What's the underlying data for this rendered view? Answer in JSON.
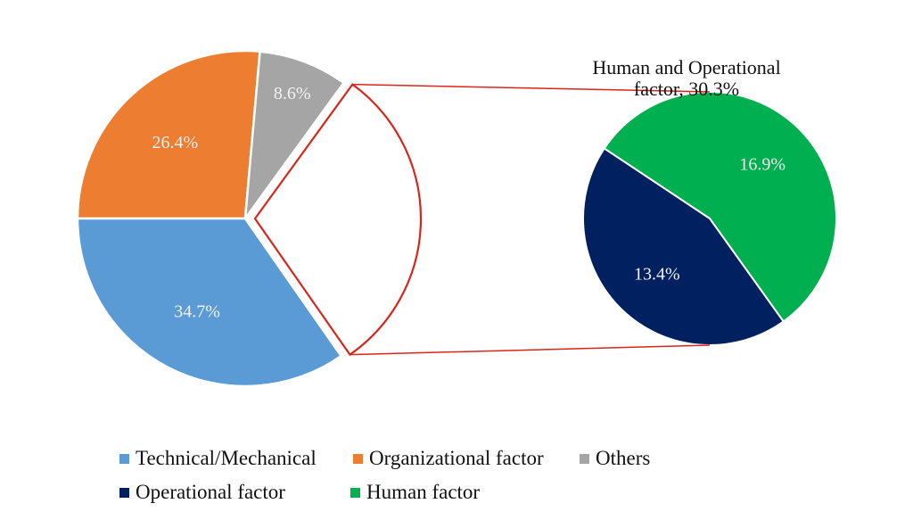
{
  "chart_data": {
    "type": "pie",
    "title": "",
    "main_pie": {
      "slices": [
        {
          "name": "Technical/Mechanical",
          "value": 34.7,
          "label": "34.7%",
          "color": "#5B9BD5"
        },
        {
          "name": "Organizational factor",
          "value": 26.4,
          "label": "26.4%",
          "color": "#ED7D31"
        },
        {
          "name": "Others",
          "value": 8.6,
          "label": "8.6%",
          "color": "#A5A5A5"
        },
        {
          "name": "Human and Operational factor",
          "value": 30.3,
          "label": "",
          "color": "#FFFFFF",
          "exploded": true,
          "outline": "#D9261C"
        }
      ]
    },
    "breakout_pie": {
      "title": "Human and Operational factor, 30.3%",
      "title_lines": [
        "Human and Operational",
        "factor, 30.3%"
      ],
      "slices": [
        {
          "name": "Human factor",
          "value": 16.9,
          "label": "16.9%",
          "color": "#00B050"
        },
        {
          "name": "Operational factor",
          "value": 13.4,
          "label": "13.4%",
          "color": "#002060"
        }
      ]
    },
    "legend": {
      "placement": "bottom",
      "items": [
        {
          "label": "Technical/Mechanical",
          "color": "#5B9BD5"
        },
        {
          "label": "Organizational factor",
          "color": "#ED7D31"
        },
        {
          "label": "Others",
          "color": "#A5A5A5"
        },
        {
          "label": "Operational factor",
          "color": "#002060"
        },
        {
          "label": "Human factor",
          "color": "#00B050"
        }
      ]
    }
  }
}
